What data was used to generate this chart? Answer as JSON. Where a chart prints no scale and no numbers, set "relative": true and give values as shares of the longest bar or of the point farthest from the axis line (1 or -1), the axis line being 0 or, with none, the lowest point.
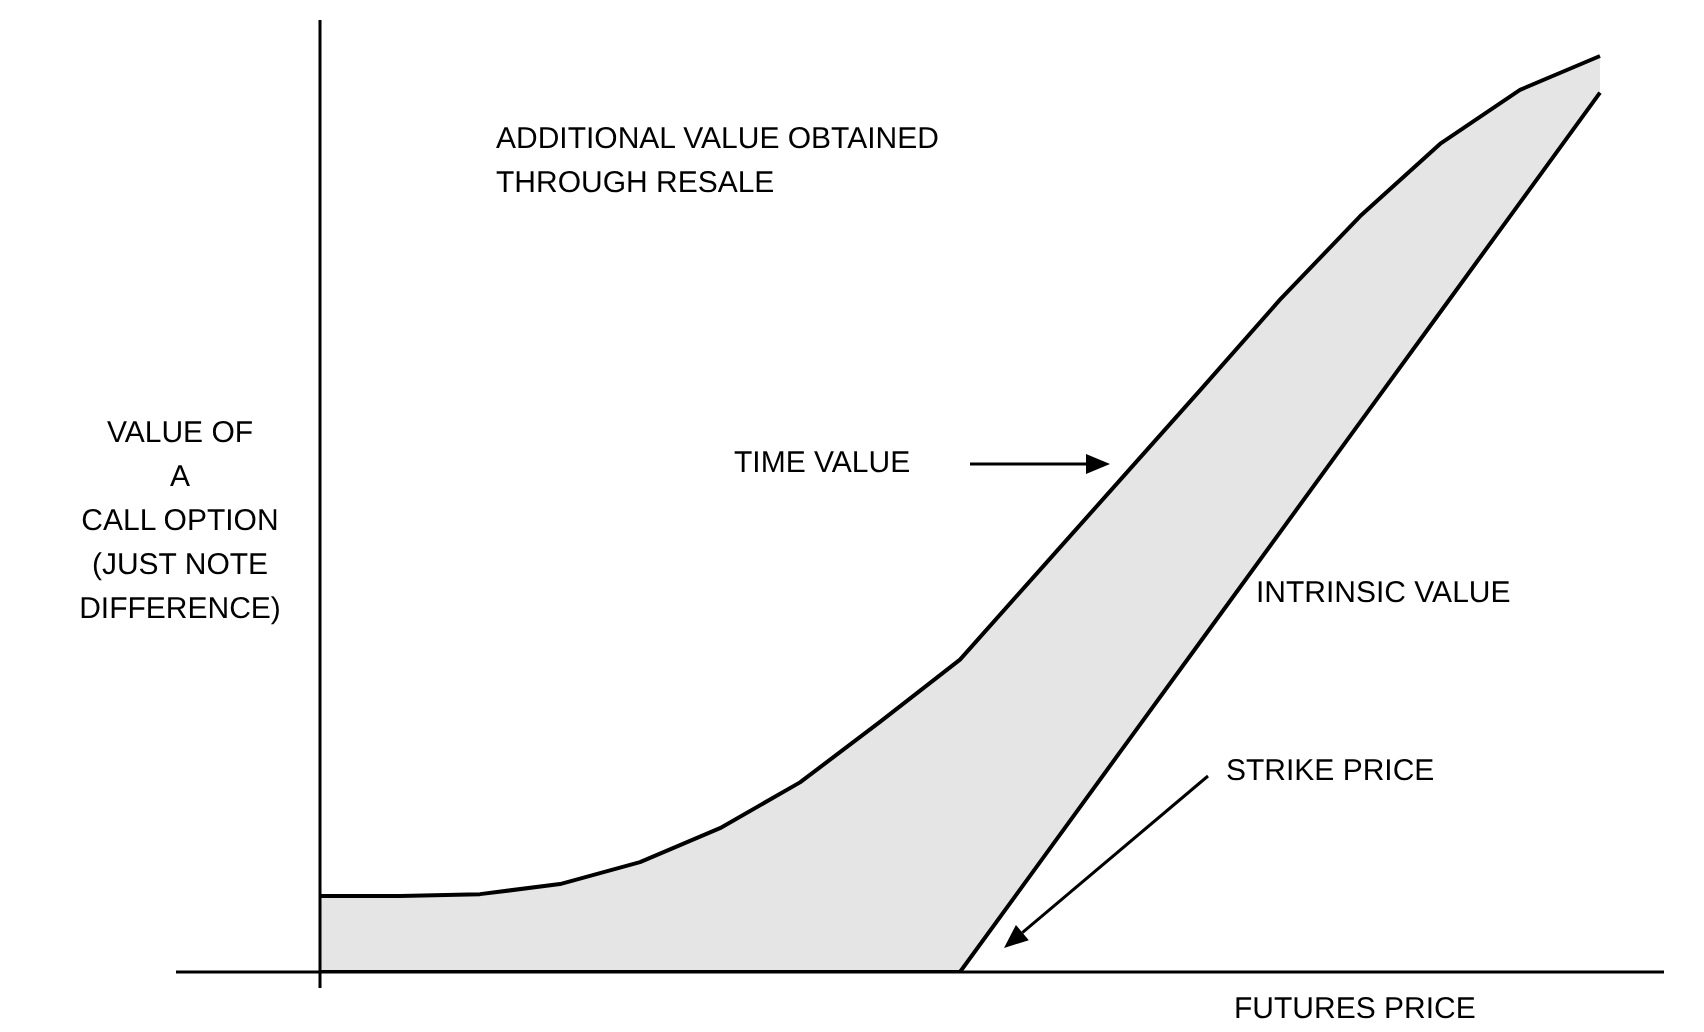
{
  "chart_data": {
    "type": "line",
    "relative": true,
    "xlabel": "FUTURES PRICE",
    "ylabel": "VALUE OF\nA\nCALL OPTION\n(JUST NOTE\nDIFFERENCE)",
    "categories": [
      null,
      null,
      null,
      null,
      null,
      null,
      null,
      null,
      null,
      null,
      null,
      null,
      null,
      null,
      null,
      null,
      null
    ],
    "series": [
      {
        "color": "#000000",
        "values": [
          0.083,
          0.083,
          0.085,
          0.096,
          0.12,
          0.157,
          0.207,
          0.273,
          0.341,
          0.439,
          0.537,
          0.635,
          0.734,
          0.825,
          0.904,
          0.963,
          1
        ],
        "lower": [
          0,
          0,
          0,
          0,
          0,
          0,
          0,
          0,
          0,
          0.12,
          0.24,
          0.36,
          0.48,
          0.6,
          0.72,
          0.84,
          0.96
        ],
        "upper": [
          0.083,
          0.083,
          0.085,
          0.096,
          0.12,
          0.157,
          0.207,
          0.273,
          0.341,
          0.439,
          0.537,
          0.635,
          0.734,
          0.825,
          0.904,
          0.963,
          1
        ]
      },
      {
        "color": "#000000",
        "values": [
          0,
          0,
          0,
          0,
          0,
          0,
          0,
          0,
          0,
          0.12,
          0.24,
          0.36,
          0.48,
          0.6,
          0.72,
          0.84,
          0.96
        ]
      }
    ],
    "annotations": [
      "ADDITIONAL VALUE OBTAINED\nTHROUGH RESALE",
      "INTRINSIC VALUE",
      "TIME VALUE",
      "STRIKE PRICE"
    ],
    "legend": false,
    "marker": "none",
    "line_style": "solid"
  }
}
